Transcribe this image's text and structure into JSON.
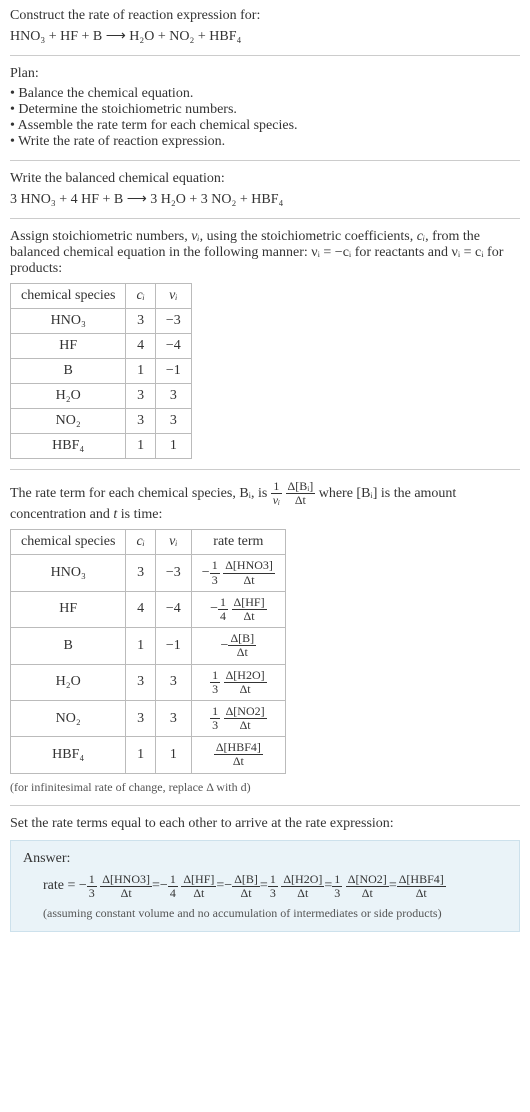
{
  "intro": {
    "construct": "Construct the rate of reaction expression for:",
    "eq_unbalanced": "HNO₃ + HF + B  ⟶  H₂O + NO₂ + HBF₄"
  },
  "plan": {
    "heading": "Plan:",
    "items": [
      "Balance the chemical equation.",
      "Determine the stoichiometric numbers.",
      "Assemble the rate term for each chemical species.",
      "Write the rate of reaction expression."
    ]
  },
  "balanced": {
    "heading": "Write the balanced chemical equation:",
    "eq": "3 HNO₃ + 4 HF + B  ⟶  3 H₂O + 3 NO₂ + HBF₄"
  },
  "stoich": {
    "text_a": "Assign stoichiometric numbers, ",
    "nu": "νᵢ",
    "text_b": ", using the stoichiometric coefficients, ",
    "ci": "cᵢ",
    "text_c": ", from the balanced chemical equation in the following manner: ",
    "rel_react": "νᵢ = −cᵢ",
    "text_d": " for reactants and ",
    "rel_prod": "νᵢ = cᵢ",
    "text_e": " for products:"
  },
  "table1": {
    "headers": [
      "chemical species",
      "cᵢ",
      "νᵢ"
    ],
    "rows": [
      [
        "HNO₃",
        "3",
        "−3"
      ],
      [
        "HF",
        "4",
        "−4"
      ],
      [
        "B",
        "1",
        "−1"
      ],
      [
        "H₂O",
        "3",
        "3"
      ],
      [
        "NO₂",
        "3",
        "3"
      ],
      [
        "HBF₄",
        "1",
        "1"
      ]
    ]
  },
  "rateterm": {
    "text_a": "The rate term for each chemical species, Bᵢ, is ",
    "frac1_num": "1",
    "frac1_den": "νᵢ",
    "frac2_num": "Δ[Bᵢ]",
    "frac2_den": "Δt",
    "text_b": " where [Bᵢ] is the amount concentration and ",
    "t": "t",
    "text_c": " is time:"
  },
  "table2": {
    "headers": [
      "chemical species",
      "cᵢ",
      "νᵢ",
      "rate term"
    ],
    "rows": [
      {
        "sp": "HNO₃",
        "c": "3",
        "nu": "−3",
        "sign": "−",
        "coef_num": "1",
        "coef_den": "3",
        "dnum": "Δ[HNO3]",
        "dden": "Δt"
      },
      {
        "sp": "HF",
        "c": "4",
        "nu": "−4",
        "sign": "−",
        "coef_num": "1",
        "coef_den": "4",
        "dnum": "Δ[HF]",
        "dden": "Δt"
      },
      {
        "sp": "B",
        "c": "1",
        "nu": "−1",
        "sign": "−",
        "coef_num": "",
        "coef_den": "",
        "dnum": "Δ[B]",
        "dden": "Δt"
      },
      {
        "sp": "H₂O",
        "c": "3",
        "nu": "3",
        "sign": "",
        "coef_num": "1",
        "coef_den": "3",
        "dnum": "Δ[H2O]",
        "dden": "Δt"
      },
      {
        "sp": "NO₂",
        "c": "3",
        "nu": "3",
        "sign": "",
        "coef_num": "1",
        "coef_den": "3",
        "dnum": "Δ[NO2]",
        "dden": "Δt"
      },
      {
        "sp": "HBF₄",
        "c": "1",
        "nu": "1",
        "sign": "",
        "coef_num": "",
        "coef_den": "",
        "dnum": "Δ[HBF4]",
        "dden": "Δt"
      }
    ],
    "footnote": "(for infinitesimal rate of change, replace Δ with d)"
  },
  "final": {
    "heading": "Set the rate terms equal to each other to arrive at the rate expression:",
    "answer_label": "Answer:",
    "rate_label": "rate = ",
    "terms": [
      {
        "sign": "−",
        "coef_num": "1",
        "coef_den": "3",
        "dnum": "Δ[HNO3]",
        "dden": "Δt"
      },
      {
        "sign": "−",
        "coef_num": "1",
        "coef_den": "4",
        "dnum": "Δ[HF]",
        "dden": "Δt"
      },
      {
        "sign": "−",
        "coef_num": "",
        "coef_den": "",
        "dnum": "Δ[B]",
        "dden": "Δt"
      },
      {
        "sign": "",
        "coef_num": "1",
        "coef_den": "3",
        "dnum": "Δ[H2O]",
        "dden": "Δt"
      },
      {
        "sign": "",
        "coef_num": "1",
        "coef_den": "3",
        "dnum": "Δ[NO2]",
        "dden": "Δt"
      },
      {
        "sign": "",
        "coef_num": "",
        "coef_den": "",
        "dnum": "Δ[HBF4]",
        "dden": "Δt"
      }
    ],
    "eq_sep": " = ",
    "assumption": "(assuming constant volume and no accumulation of intermediates or side products)"
  }
}
